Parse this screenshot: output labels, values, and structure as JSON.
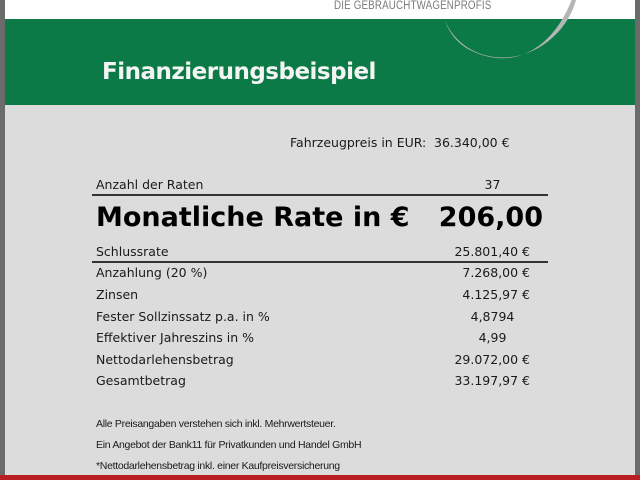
{
  "header": {
    "tagline": "DIE GEBRAUCHTWAGENPROFIS",
    "title": "Finanzierungsbeispiel",
    "brand_green": "#0c7a46",
    "accent_red": "#b81e22"
  },
  "vehicle_price": {
    "label": "Fahrzeugpreis in EUR:",
    "value": "36.340,00 €"
  },
  "installments": {
    "label": "Anzahl der Raten",
    "value": "37"
  },
  "monthly_rate": {
    "label": "Monatliche Rate in €",
    "value": "206,00"
  },
  "rows": [
    {
      "label": "Schlussrate",
      "value": "25.801,40 €"
    },
    {
      "label": "Anzahlung (20 %)",
      "value": "7.268,00 €"
    },
    {
      "label": "Zinsen",
      "value": "4.125,97 €"
    },
    {
      "label": "Fester Sollzinssatz p.a. in %",
      "value": "4,8794"
    },
    {
      "label": "Effektiver Jahreszins in %",
      "value": "4,99"
    },
    {
      "label": "Nettodarlehensbetrag",
      "value": "29.072,00 €"
    },
    {
      "label": "Gesamtbetrag",
      "value": "33.197,97 €"
    }
  ],
  "footnotes": [
    "Alle Preisangaben verstehen sich inkl. Mehrwertsteuer.",
    "Ein Angebot der Bank11 für Privatkunden und Handel GmbH",
    "*Nettodarlehensbetrag inkl. einer Kaufpreisversicherung"
  ]
}
